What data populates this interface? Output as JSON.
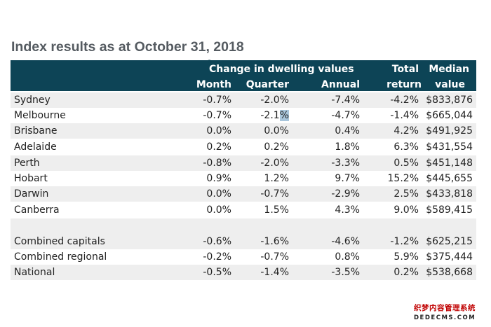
{
  "title": "Index results as at October 31, 2018",
  "header": {
    "group_label": "Change in dwelling values",
    "month": "Month",
    "quarter": "Quarter",
    "annual": "Annual",
    "total_line1": "Total",
    "total_line2": "return",
    "median_line1": "Median",
    "median_line2": "value"
  },
  "rows": [
    {
      "name": "Sydney",
      "month": "-0.7%",
      "quarter": "-2.0%",
      "annual": "-7.4%",
      "total": "-4.2%",
      "median": "$833,876"
    },
    {
      "name": "Melbourne",
      "month": "-0.7%",
      "quarter_main": "-2.1",
      "quarter_sel": "%",
      "annual": "-4.7%",
      "total": "-1.4%",
      "median": "$665,044"
    },
    {
      "name": "Brisbane",
      "month": "0.0%",
      "quarter": "0.0%",
      "annual": "0.4%",
      "total": "4.2%",
      "median": "$491,925"
    },
    {
      "name": "Adelaide",
      "month": "0.2%",
      "quarter": "0.2%",
      "annual": "1.8%",
      "total": "6.3%",
      "median": "$431,554"
    },
    {
      "name": "Perth",
      "month": "-0.8%",
      "quarter": "-2.0%",
      "annual": "-3.3%",
      "total": "0.5%",
      "median": "$451,148"
    },
    {
      "name": "Hobart",
      "month": "0.9%",
      "quarter": "1.2%",
      "annual": "9.7%",
      "total": "15.2%",
      "median": "$445,655"
    },
    {
      "name": "Darwin",
      "month": "0.0%",
      "quarter": "-0.7%",
      "annual": "-2.9%",
      "total": "2.5%",
      "median": "$433,818"
    },
    {
      "name": "Canberra",
      "month": "0.0%",
      "quarter": "1.5%",
      "annual": "4.3%",
      "total": "9.0%",
      "median": "$589,415"
    },
    {
      "name": "Combined capitals",
      "month": "-0.6%",
      "quarter": "-1.6%",
      "annual": "-4.6%",
      "total": "-1.2%",
      "median": "$625,215"
    },
    {
      "name": "Combined regional",
      "month": "-0.2%",
      "quarter": "-0.7%",
      "annual": "0.8%",
      "total": "5.9%",
      "median": "$375,444"
    },
    {
      "name": "National",
      "month": "-0.5%",
      "quarter": "-1.4%",
      "annual": "-3.5%",
      "total": "0.2%",
      "median": "$538,668"
    }
  ],
  "watermark": {
    "line1": "织梦内容管理系统",
    "line2": "DEDECMS.COM"
  },
  "colors": {
    "header_bg": "#0d4456",
    "title": "#555b61",
    "row_alt": "#eeeeee",
    "selection": "#a9c6dc"
  }
}
